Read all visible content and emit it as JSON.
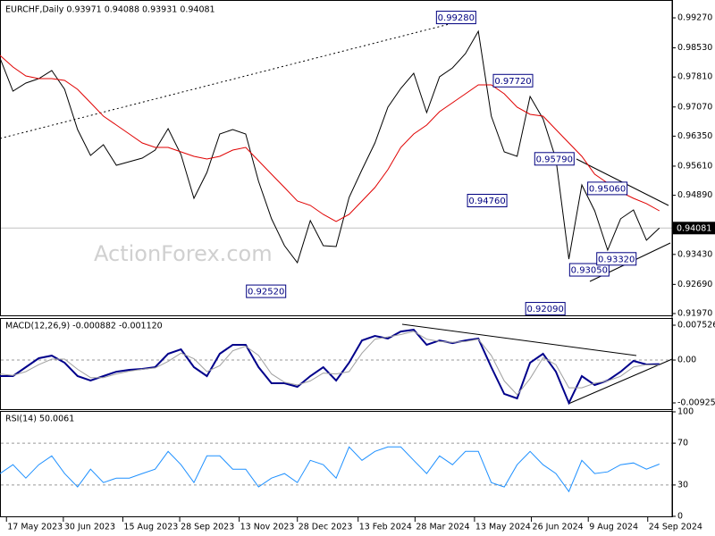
{
  "chart_data": {
    "type": "line",
    "x": [
      "2023-05-12",
      "2023-05-22",
      "2023-06-01",
      "2023-06-11",
      "2023-06-21",
      "2023-07-01",
      "2023-07-11",
      "2023-07-21",
      "2023-07-31",
      "2023-08-10",
      "2023-08-20",
      "2023-08-30",
      "2023-09-09",
      "2023-09-19",
      "2023-09-29",
      "2023-10-09",
      "2023-10-19",
      "2023-10-29",
      "2023-11-08",
      "2023-11-18",
      "2023-11-28",
      "2023-12-08",
      "2023-12-18",
      "2023-12-28",
      "2024-01-07",
      "2024-01-17",
      "2024-01-27",
      "2024-02-06",
      "2024-02-16",
      "2024-02-26",
      "2024-03-07",
      "2024-03-17",
      "2024-03-27",
      "2024-04-06",
      "2024-04-16",
      "2024-04-26",
      "2024-05-06",
      "2024-05-16",
      "2024-05-26",
      "2024-06-05",
      "2024-06-15",
      "2024-06-25",
      "2024-07-05",
      "2024-07-15",
      "2024-07-25",
      "2024-08-04",
      "2024-08-14",
      "2024-08-24",
      "2024-09-03",
      "2024-09-13",
      "2024-09-23",
      "2024-10-03"
    ],
    "xlim": [
      "2023-05-12",
      "2024-10-08"
    ],
    "xticks": [
      {
        "value": "2023-05-17",
        "label": "17 May 2023"
      },
      {
        "value": "2023-06-30",
        "label": "30 Jun 2023"
      },
      {
        "value": "2023-08-15",
        "label": "15 Aug 2023"
      },
      {
        "value": "2023-09-28",
        "label": "28 Sep 2023"
      },
      {
        "value": "2023-11-13",
        "label": "13 Nov 2023"
      },
      {
        "value": "2023-12-28",
        "label": "28 Dec 2023"
      },
      {
        "value": "2024-02-13",
        "label": "13 Feb 2024"
      },
      {
        "value": "2024-03-28",
        "label": "28 Mar 2024"
      },
      {
        "value": "2024-05-13",
        "label": "13 May 2024"
      },
      {
        "value": "2024-06-26",
        "label": "26 Jun 2024"
      },
      {
        "value": "2024-08-09",
        "label": "9 Aug 2024"
      },
      {
        "value": "2024-09-24",
        "label": "24 Sep 2024"
      }
    ],
    "panels": [
      {
        "title": "EURCHF,Daily  0.93971 0.94088 0.93931 0.94081",
        "watermark": "ActionForex.com",
        "ylim": [
          0.91926,
          0.99645
        ],
        "yticks": [
          {
            "value": 0.9927,
            "label": "0.99270"
          },
          {
            "value": 0.9853,
            "label": "0.98530"
          },
          {
            "value": 0.9781,
            "label": "0.97810"
          },
          {
            "value": 0.9707,
            "label": "0.97070"
          },
          {
            "value": 0.9635,
            "label": "0.96350"
          },
          {
            "value": 0.9561,
            "label": "0.95610"
          },
          {
            "value": 0.9489,
            "label": "0.94890"
          },
          {
            "value": 0.9343,
            "label": "0.93430"
          },
          {
            "value": 0.9269,
            "label": "0.92690"
          },
          {
            "value": 0.9197,
            "label": "0.91970"
          }
        ],
        "last": {
          "value": 0.94081,
          "label": "0.94081"
        },
        "series": [
          {
            "color": "#000000",
            "values": [
              0.98278,
              0.97462,
              0.9766,
              0.9777,
              0.9797,
              0.97506,
              0.96514,
              0.95874,
              0.96139,
              0.95632,
              0.9572,
              0.95808,
              0.96007,
              0.96536,
              0.95896,
              0.94816,
              0.95455,
              0.96403,
              0.96514,
              0.96403,
              0.95235,
              0.94309,
              0.93647,
              0.93228,
              0.94265,
              0.93647,
              0.93625,
              0.94838,
              0.95521,
              0.96183,
              0.97065,
              0.97528,
              0.97903,
              0.96933,
              0.97815,
              0.98035,
              0.98388,
              0.98939,
              0.96844,
              0.95962,
              0.95852,
              0.9733,
              0.96778,
              0.95786,
              0.93316,
              0.95147,
              0.94507,
              0.93537,
              0.94309,
              0.94529,
              0.9378,
              0.94081
            ]
          },
          {
            "color": "#e00000",
            "values": [
              0.98344,
              0.98057,
              0.97837,
              0.97771,
              0.97771,
              0.97727,
              0.97506,
              0.97175,
              0.96845,
              0.96624,
              0.96404,
              0.96183,
              0.96073,
              0.96073,
              0.95963,
              0.95852,
              0.95786,
              0.95852,
              0.96007,
              0.96073,
              0.95742,
              0.95411,
              0.95081,
              0.9475,
              0.9464,
              0.94419,
              0.94243,
              0.94419,
              0.9475,
              0.95081,
              0.95522,
              0.96073,
              0.96404,
              0.96624,
              0.96955,
              0.97175,
              0.97396,
              0.97616,
              0.97616,
              0.97396,
              0.97065,
              0.96889,
              0.96845,
              0.96514,
              0.96183,
              0.95852,
              0.95411,
              0.95191,
              0.9497,
              0.94816,
              0.94684,
              0.94507
            ]
          }
        ],
        "annotations": [
          {
            "x": "2024-05-14",
            "value": 0.9928,
            "label": "0.99280"
          },
          {
            "x": "2024-06-27",
            "value": 0.9772,
            "label": "0.97720"
          },
          {
            "x": "2024-07-29",
            "value": 0.9579,
            "label": "0.95790"
          },
          {
            "x": "2024-06-07",
            "value": 0.9476,
            "label": "0.94760"
          },
          {
            "x": "2023-12-19",
            "value": 0.9252,
            "label": "0.92520"
          },
          {
            "x": "2024-07-22",
            "value": 0.9209,
            "label": "0.92090"
          },
          {
            "x": "2024-08-25",
            "value": 0.9305,
            "label": "0.93050"
          },
          {
            "x": "2024-09-15",
            "value": 0.9332,
            "label": "0.93320"
          },
          {
            "x": "2024-09-08",
            "value": 0.9506,
            "label": "0.95060"
          }
        ]
      },
      {
        "title": "MACD(12,26,9) -0.000882 -0.001120",
        "ylim": [
          -0.0106,
          0.00888
        ],
        "yticks": [
          0.007526,
          {
            "value": 0,
            "label": "0.00"
          },
          -0.009252
        ],
        "levels": [
          0
        ],
        "series": [
          {
            "color": "#00008b",
            "values": [
              -0.00347,
              -0.00347,
              -0.00154,
              0.00039,
              0.00096,
              -0.00058,
              -0.00347,
              -0.00443,
              -0.00347,
              -0.00251,
              -0.00212,
              -0.00193,
              -0.00154,
              0.00135,
              0.00231,
              -0.00154,
              -0.00347,
              0.00135,
              0.00328,
              0.00328,
              -0.00154,
              -0.00501,
              -0.00501,
              -0.00578,
              -0.00347,
              -0.00154,
              -0.00443,
              -0.00058,
              0.00424,
              0.00521,
              0.00463,
              0.00617,
              0.00655,
              0.00328,
              0.00424,
              0.00366,
              0.00424,
              0.00463,
              -0.00154,
              -0.00733,
              -0.00829,
              -0.00058,
              0.00135,
              -0.00251,
              -0.00925,
              -0.00347,
              -0.0054,
              -0.00443,
              -0.00251,
              -0.00019,
              -0.00096,
              -0.000882
            ]
          },
          {
            "color": "#a0a0a0",
            "values": [
              -0.003,
              -0.0033,
              -0.0025,
              -0.001,
              0.0002,
              0.0002,
              -0.002,
              -0.0038,
              -0.0038,
              -0.003,
              -0.0024,
              -0.002,
              -0.0017,
              -0.0003,
              0.0015,
              0.0003,
              -0.0025,
              -0.0012,
              0.002,
              0.003,
              0.001,
              -0.003,
              -0.0048,
              -0.0054,
              -0.0045,
              -0.0028,
              -0.003,
              -0.0025,
              0.0015,
              0.0045,
              0.005,
              0.0055,
              0.0062,
              0.0045,
              0.004,
              0.0038,
              0.004,
              0.0045,
              0.001,
              -0.0045,
              -0.0075,
              -0.004,
              0.0005,
              -0.001,
              -0.006,
              -0.006,
              -0.005,
              -0.0045,
              -0.0035,
              -0.0015,
              -0.001,
              -0.00112
            ]
          }
        ]
      },
      {
        "title": "RSI(14) 50.0061",
        "ylim": [
          0,
          100
        ],
        "yticks": [
          100,
          70,
          30,
          0
        ],
        "levels": [
          70,
          30
        ],
        "series": [
          {
            "color": "#1e90ff",
            "values": [
              40.9,
              49.4,
              36.6,
              49.4,
              57.9,
              40.9,
              28.1,
              45.1,
              32.3,
              36.6,
              36.6,
              40.9,
              45.1,
              62.1,
              49.4,
              32.3,
              57.9,
              57.9,
              45.1,
              45.1,
              28.1,
              36.6,
              40.9,
              32.3,
              53.6,
              49.4,
              36.6,
              66.4,
              53.6,
              62.1,
              66.4,
              66.4,
              53.6,
              40.9,
              57.9,
              49.4,
              62.1,
              62.1,
              32.3,
              28.1,
              49.4,
              62.1,
              49.4,
              40.9,
              23.8,
              53.6,
              40.9,
              42.6,
              49.4,
              51.1,
              45.1,
              50.0061
            ]
          }
        ]
      }
    ]
  }
}
